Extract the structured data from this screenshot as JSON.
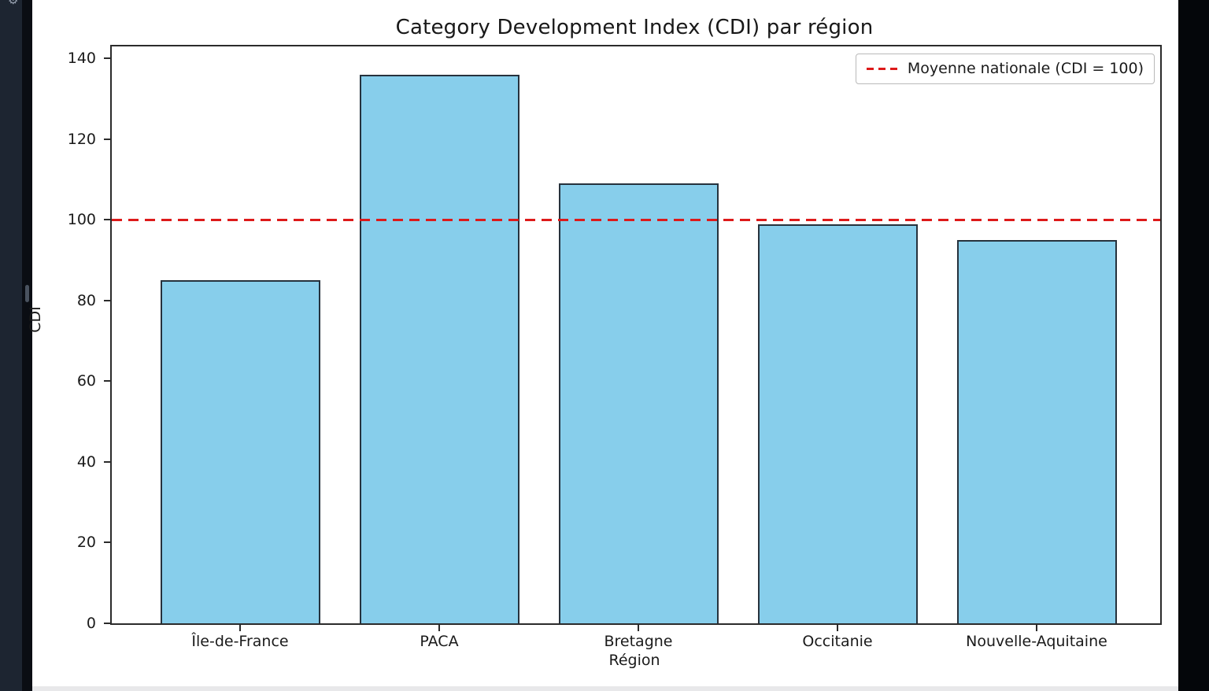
{
  "app": {
    "left_sidebar": {
      "top_icon": "gear"
    }
  },
  "chart_data": {
    "type": "bar",
    "title": "Category Development Index (CDI) par région",
    "xlabel": "Région",
    "ylabel": "CDI",
    "categories": [
      "Île-de-France",
      "PACA",
      "Bretagne",
      "Occitanie",
      "Nouvelle-Aquitaine"
    ],
    "values": [
      85,
      136,
      109,
      99,
      95
    ],
    "yticks": [
      0,
      20,
      40,
      60,
      80,
      100,
      120,
      140
    ],
    "ylim": [
      0,
      143
    ],
    "bar_color": "#87ceeb",
    "bar_edge_color": "#26323d",
    "reference_line": {
      "value": 100,
      "label": "Moyenne nationale (CDI = 100)",
      "color": "#dd1a1a",
      "style": "dashed"
    },
    "legend_position": "upper right",
    "grid": false
  }
}
